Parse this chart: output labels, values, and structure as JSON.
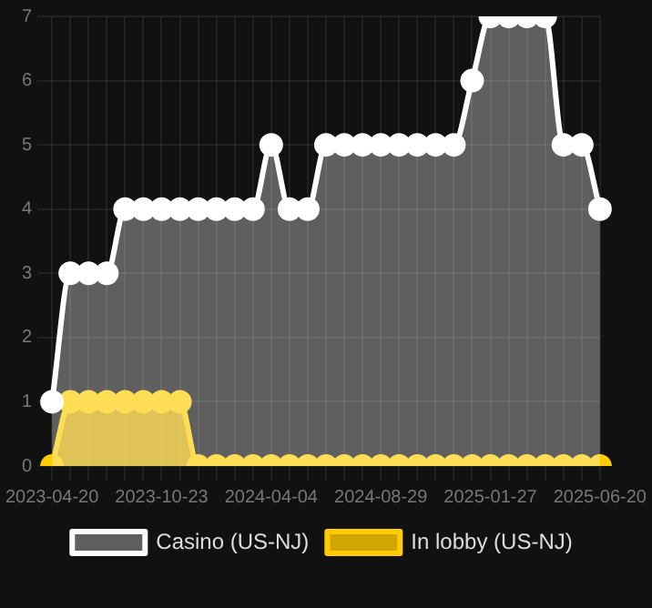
{
  "chart_data": {
    "type": "area",
    "categories": [
      "2023-04-20",
      null,
      null,
      null,
      null,
      null,
      "2023-10-23",
      null,
      null,
      null,
      null,
      null,
      "2024-04-04",
      null,
      null,
      null,
      null,
      null,
      "2024-08-29",
      null,
      null,
      null,
      null,
      null,
      "2025-01-27",
      null,
      null,
      null,
      null,
      null,
      "2025-06-20"
    ],
    "series": [
      {
        "name": "In lobby (US-NJ)",
        "color": "#ffcc00",
        "values": [
          0,
          1,
          1,
          1,
          1,
          1,
          1,
          1,
          0,
          0,
          0,
          0,
          0,
          0,
          0,
          0,
          0,
          0,
          0,
          0,
          0,
          0,
          0,
          0,
          0,
          0,
          0,
          0,
          0,
          0,
          0
        ]
      },
      {
        "name": "Casino (US-NJ)",
        "color": "#ffffff",
        "values": [
          1,
          3,
          3,
          3,
          4,
          4,
          4,
          4,
          4,
          4,
          4,
          4,
          5,
          4,
          4,
          5,
          5,
          5,
          5,
          5,
          5,
          5,
          5,
          6,
          7,
          7,
          7,
          7,
          5,
          5,
          4
        ]
      }
    ],
    "ylim": [
      0,
      7
    ],
    "yticks": [
      0,
      1,
      2,
      3,
      4,
      5,
      6,
      7
    ],
    "grid": true,
    "legend": "bottom",
    "marker": "circle",
    "line_style": "solid"
  }
}
